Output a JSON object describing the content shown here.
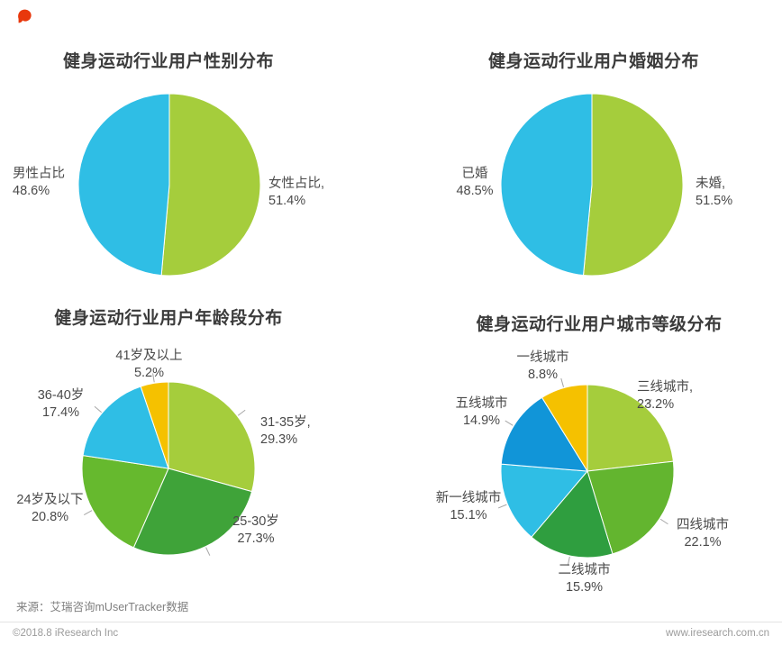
{
  "page": {
    "source_note": "来源：艾瑞咨询mUserTracker数据",
    "footer_left": "©2018.8 iResearch Inc",
    "footer_right": "www.iresearch.com.cn",
    "logo_color": "#e8380d"
  },
  "chart_data": [
    {
      "id": "gender",
      "type": "pie",
      "title": "健身运动行业用户性别分布",
      "radius": 101,
      "leader_ticks": false,
      "legend_position": "none",
      "slices": [
        {
          "name": "女性占比",
          "value": 51.4,
          "color": "#a5cd3c",
          "label_lines": [
            "女性占比,",
            "51.4%"
          ]
        },
        {
          "name": "男性占比",
          "value": 48.6,
          "color": "#2fbee5",
          "label_lines": [
            "男性占比",
            "48.6%"
          ]
        }
      ]
    },
    {
      "id": "marriage",
      "type": "pie",
      "title": "健身运动行业用户婚姻分布",
      "radius": 101,
      "leader_ticks": false,
      "legend_position": "none",
      "slices": [
        {
          "name": "未婚",
          "value": 51.5,
          "color": "#a5cd3c",
          "label_lines": [
            "未婚,",
            "51.5%"
          ]
        },
        {
          "name": "已婚",
          "value": 48.5,
          "color": "#2fbee5",
          "label_lines": [
            "已婚",
            "48.5%"
          ]
        }
      ]
    },
    {
      "id": "age",
      "type": "pie",
      "title": "健身运动行业用户年龄段分布",
      "radius": 96,
      "leader_ticks": true,
      "legend_position": "none",
      "slices": [
        {
          "name": "31-35岁",
          "value": 29.3,
          "color": "#a5cd3c",
          "label_lines": [
            "31-35岁,",
            "29.3%"
          ]
        },
        {
          "name": "25-30岁",
          "value": 27.3,
          "color": "#3fa339",
          "label_lines": [
            "25-30岁",
            "27.3%"
          ]
        },
        {
          "name": "24岁及以下",
          "value": 20.8,
          "color": "#66b92e",
          "label_lines": [
            "24岁及以下",
            "20.8%"
          ]
        },
        {
          "name": "36-40岁",
          "value": 17.4,
          "color": "#2fbee5",
          "label_lines": [
            "36-40岁",
            "17.4%"
          ]
        },
        {
          "name": "41岁及以上",
          "value": 5.2,
          "color": "#f5c100",
          "label_lines": [
            "41岁及以上",
            "5.2%"
          ]
        }
      ]
    },
    {
      "id": "city-tier",
      "type": "pie",
      "title": "健身运动行业用户城市等级分布",
      "radius": 96,
      "leader_ticks": true,
      "legend_position": "none",
      "slices": [
        {
          "name": "三线城市",
          "value": 23.2,
          "color": "#a5cd3c",
          "label_lines": [
            "三线城市,",
            "23.2%"
          ]
        },
        {
          "name": "四线城市",
          "value": 22.1,
          "color": "#63b52f",
          "label_lines": [
            "四线城市",
            "22.1%"
          ]
        },
        {
          "name": "二线城市",
          "value": 15.9,
          "color": "#2f9e3f",
          "label_lines": [
            "二线城市",
            "15.9%"
          ]
        },
        {
          "name": "新一线城市",
          "value": 15.1,
          "color": "#2fbee5",
          "label_lines": [
            "新一线城市",
            "15.1%"
          ]
        },
        {
          "name": "五线城市",
          "value": 14.9,
          "color": "#1195d8",
          "label_lines": [
            "五线城市",
            "14.9%"
          ]
        },
        {
          "name": "一线城市",
          "value": 8.8,
          "color": "#f5c100",
          "label_lines": [
            "一线城市",
            "8.8%"
          ]
        }
      ]
    }
  ]
}
